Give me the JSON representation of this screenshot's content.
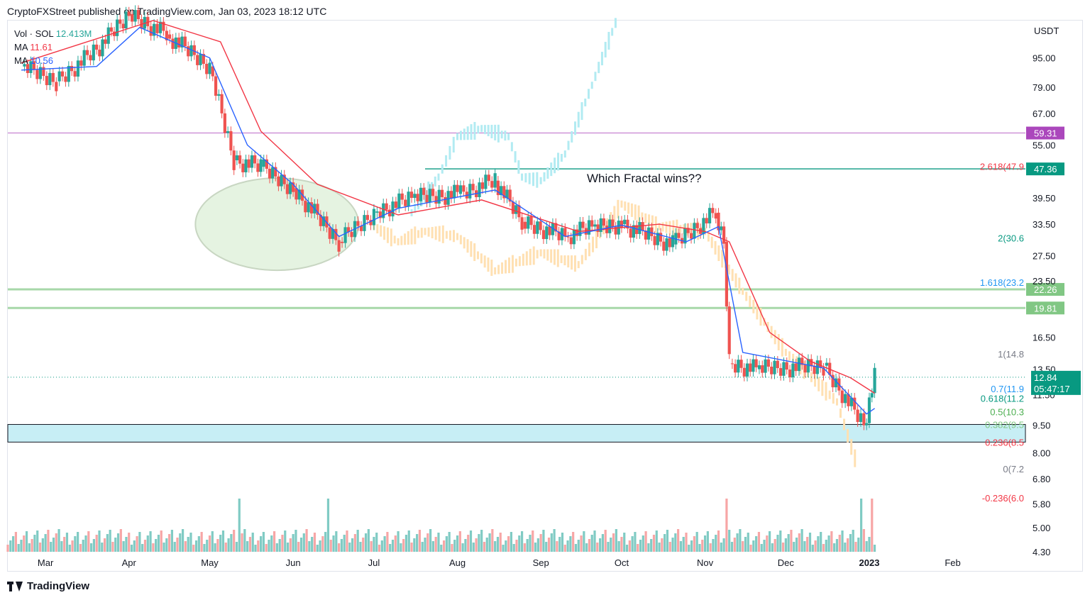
{
  "header": {
    "publisher_line": "CryptoFXStreet published on TradingView.com, Jan 03, 2023 18:12 UTC"
  },
  "legend": {
    "vol_label": "Vol · SOL",
    "vol_value": "12.413M",
    "ma1_label": "MA",
    "ma1_value": "11.61",
    "ma2_label": "MA",
    "ma2_value": "10.56"
  },
  "annotation": {
    "text": "Which Fractal wins??"
  },
  "footer": {
    "brand": "TradingView"
  },
  "colors": {
    "up": "#26a69a",
    "down": "#ef5350",
    "ma_fast": "#2962ff",
    "ma_slow": "#f23645",
    "fractal_blue": "#b2ebf2",
    "fractal_orange": "#ffe0b2",
    "level_teal": "#089981",
    "level_purple": "#ab47bc",
    "level_green": "#81c784",
    "zone_blue": "#c7eef5",
    "ellipse_fill": "#e5f3e1",
    "last_price_bg": "#089981"
  },
  "chart_data": {
    "type": "candlestick",
    "symbol": "SOL",
    "quote": "USDT",
    "scale": "log",
    "ylim": [
      4.3,
      120
    ],
    "y_ticks": [
      "95.00",
      "79.00",
      "67.00",
      "55.00",
      "39.50",
      "33.50",
      "27.50",
      "23.50",
      "16.50",
      "13.50",
      "11.50",
      "9.50",
      "8.00",
      "6.80",
      "5.80",
      "5.00",
      "4.30"
    ],
    "x_ticks": [
      "Mar",
      "Apr",
      "May",
      "Jun",
      "Jul",
      "Aug",
      "Sep",
      "Oct",
      "Nov",
      "Dec",
      "2023",
      "Feb"
    ],
    "x_ticks_bold": [
      "2023"
    ],
    "price_path": [
      [
        "2022-02-20",
        90
      ],
      [
        "2022-03-05",
        82
      ],
      [
        "2022-03-20",
        100
      ],
      [
        "2022-04-01",
        125
      ],
      [
        "2022-04-15",
        110
      ],
      [
        "2022-05-01",
        90
      ],
      [
        "2022-05-10",
        50
      ],
      [
        "2022-05-20",
        48
      ],
      [
        "2022-06-01",
        42
      ],
      [
        "2022-06-18",
        30
      ],
      [
        "2022-07-01",
        36
      ],
      [
        "2022-07-15",
        39.5
      ],
      [
        "2022-08-01",
        40.5
      ],
      [
        "2022-08-15",
        44
      ],
      [
        "2022-08-25",
        34
      ],
      [
        "2022-09-10",
        31
      ],
      [
        "2022-09-20",
        33
      ],
      [
        "2022-10-01",
        33.5
      ],
      [
        "2022-10-20",
        29.5
      ],
      [
        "2022-11-05",
        36
      ],
      [
        "2022-11-08",
        30
      ],
      [
        "2022-11-10",
        14
      ],
      [
        "2022-11-20",
        13.5
      ],
      [
        "2022-12-15",
        13.8
      ],
      [
        "2022-12-30",
        9.5
      ],
      [
        "2023-01-03",
        12.84
      ]
    ],
    "ma_fast_path": [
      [
        "2022-02-20",
        88
      ],
      [
        "2022-03-20",
        90
      ],
      [
        "2022-04-05",
        115
      ],
      [
        "2022-05-01",
        95
      ],
      [
        "2022-05-15",
        55
      ],
      [
        "2022-06-01",
        43
      ],
      [
        "2022-06-18",
        31
      ],
      [
        "2022-07-10",
        37
      ],
      [
        "2022-08-15",
        41.5
      ],
      [
        "2022-09-10",
        31
      ],
      [
        "2022-10-01",
        33.3
      ],
      [
        "2022-10-25",
        30
      ],
      [
        "2022-11-06",
        33
      ],
      [
        "2022-11-15",
        15
      ],
      [
        "2022-12-15",
        13.6
      ],
      [
        "2022-12-31",
        10.2
      ],
      [
        "2023-01-03",
        10.56
      ]
    ],
    "ma_slow_path": [
      [
        "2022-02-20",
        92
      ],
      [
        "2022-04-10",
        120
      ],
      [
        "2022-05-05",
        105
      ],
      [
        "2022-05-20",
        60
      ],
      [
        "2022-06-10",
        43
      ],
      [
        "2022-07-10",
        35.5
      ],
      [
        "2022-08-10",
        39
      ],
      [
        "2022-09-15",
        32
      ],
      [
        "2022-10-15",
        33.5
      ],
      [
        "2022-11-01",
        32
      ],
      [
        "2022-11-10",
        30
      ],
      [
        "2022-11-25",
        17
      ],
      [
        "2022-12-10",
        14.2
      ],
      [
        "2022-12-25",
        12.8
      ],
      [
        "2023-01-03",
        11.61
      ]
    ],
    "fractal_projection_blue": [
      [
        "2022-07-15",
        36
      ],
      [
        "2022-07-25",
        45
      ],
      [
        "2022-08-01",
        58
      ],
      [
        "2022-08-10",
        61
      ],
      [
        "2022-08-20",
        58
      ],
      [
        "2022-08-25",
        45
      ],
      [
        "2022-09-01",
        44
      ],
      [
        "2022-09-10",
        52
      ],
      [
        "2022-09-20",
        80
      ],
      [
        "2022-09-30",
        125
      ]
    ],
    "fractal_projection_orange": [
      [
        "2022-07-01",
        33
      ],
      [
        "2022-07-10",
        30
      ],
      [
        "2022-07-20",
        32
      ],
      [
        "2022-08-01",
        31
      ],
      [
        "2022-08-15",
        25
      ],
      [
        "2022-09-01",
        28
      ],
      [
        "2022-09-15",
        26
      ],
      [
        "2022-10-01",
        38
      ],
      [
        "2022-10-15",
        33
      ],
      [
        "2022-11-01",
        32
      ],
      [
        "2022-11-15",
        22
      ],
      [
        "2022-12-01",
        15
      ],
      [
        "2022-12-20",
        11
      ],
      [
        "2022-12-28",
        7.2
      ]
    ],
    "horizontal_levels": [
      {
        "label": "59.31",
        "value": 59.31,
        "color": "#ab47bc"
      },
      {
        "label": "47.36",
        "value": 47.36,
        "color": "#089981"
      },
      {
        "label": "22.26",
        "value": 22.26,
        "color": "#81c784"
      },
      {
        "label": "19.81",
        "value": 19.81,
        "color": "#81c784"
      }
    ],
    "fib_levels": [
      {
        "label": "2.618(47.9",
        "value": 47.9,
        "color": "#f23645"
      },
      {
        "label": "2(30.6",
        "value": 30.6,
        "color": "#089981"
      },
      {
        "label": "1.618(23.2",
        "value": 23.2,
        "color": "#2196f3"
      },
      {
        "label": "1(14.8",
        "value": 14.8,
        "color": "#787b86"
      },
      {
        "label": "0.7(11.9",
        "value": 11.9,
        "color": "#2196f3"
      },
      {
        "label": "0.618(11.2",
        "value": 11.2,
        "color": "#089981"
      },
      {
        "label": "0.5(10.3",
        "value": 10.3,
        "color": "#4caf50"
      },
      {
        "label": "0.382(9.5",
        "value": 9.5,
        "color": "#81c784"
      },
      {
        "label": "0.236(8.5",
        "value": 8.5,
        "color": "#f23645"
      },
      {
        "label": "0(7.2",
        "value": 7.2,
        "color": "#787b86"
      },
      {
        "label": "-0.236(6.0",
        "value": 6.0,
        "color": "#f23645"
      }
    ],
    "support_zone": [
      8.55,
      9.55
    ],
    "last_price": {
      "price": "12.84",
      "countdown": "05:47:17"
    },
    "volume_spike_dates": [
      "2022-05-12",
      "2022-06-14",
      "2022-11-09",
      "2022-12-29",
      "2023-01-02"
    ]
  }
}
